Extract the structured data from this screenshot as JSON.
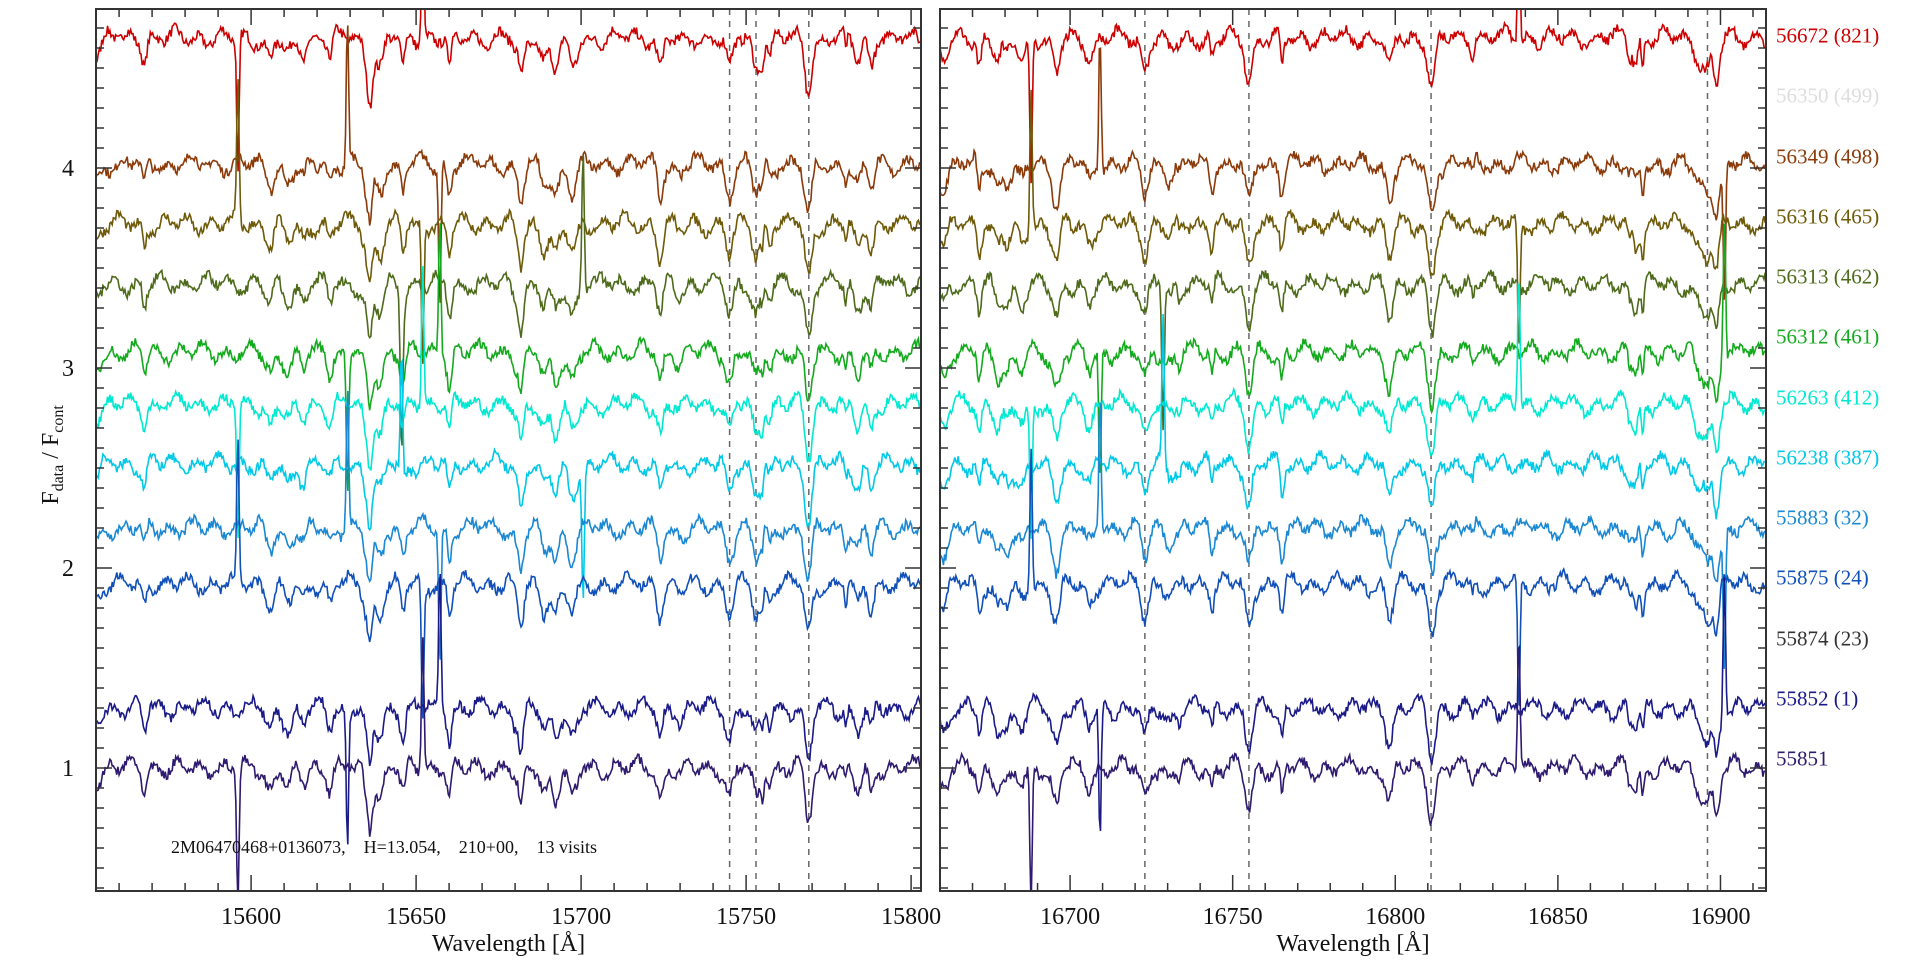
{
  "chart_data": {
    "type": "line",
    "ylabel_main": "F",
    "ylabel_num_sub": "data",
    "ylabel_sep": " / F",
    "ylabel_den_sub": "cont",
    "annotation": "2M06470468+0136073,    H=13.054,    210+00,    13 visits",
    "ylim": [
      0.385,
      4.795
    ],
    "yticks": [
      1,
      2,
      3,
      4
    ],
    "yminor_step": 0.1,
    "panels": [
      {
        "xlabel": "Wavelength [Å]",
        "xlim": [
          15553,
          15803
        ],
        "xticks": [
          15600,
          15650,
          15700,
          15750,
          15800
        ],
        "xminor_step": 10,
        "dashed_lines": [
          15745,
          15753,
          15769
        ]
      },
      {
        "xlabel": "Wavelength [Å]",
        "xlim": [
          16660,
          16914
        ],
        "xticks": [
          16700,
          16750,
          16800,
          16850,
          16900
        ],
        "xminor_step": 10,
        "dashed_lines": [
          16723,
          16755,
          16811,
          16896
        ]
      }
    ],
    "series": [
      {
        "name": "56672 (821)",
        "level": 4.65,
        "color": "#cc0000",
        "plotted": true
      },
      {
        "name": "56350 (499)",
        "level": null,
        "color": "#dddddd",
        "plotted": false
      },
      {
        "name": "56349 (498)",
        "level": 4.02,
        "color": "#8b3a0a",
        "plotted": true
      },
      {
        "name": "56316 (465)",
        "level": 3.72,
        "color": "#6e5a08",
        "plotted": true
      },
      {
        "name": "56313 (462)",
        "level": 3.42,
        "color": "#4d6b1a",
        "plotted": true
      },
      {
        "name": "56312 (461)",
        "level": 3.08,
        "color": "#14aa1e",
        "plotted": true
      },
      {
        "name": "56263 (412)",
        "level": 2.82,
        "color": "#00e8d0",
        "plotted": true
      },
      {
        "name": "56238 (387)",
        "level": 2.52,
        "color": "#00c8e6",
        "plotted": true
      },
      {
        "name": "55883 (32)",
        "level": 2.2,
        "color": "#1a88d2",
        "plotted": true
      },
      {
        "name": "55875 (24)",
        "level": 1.92,
        "color": "#1050b8",
        "plotted": true
      },
      {
        "name": "55874 (23)",
        "level": null,
        "color": "#333333",
        "plotted": false
      },
      {
        "name": "55852 (1)",
        "level": 1.3,
        "color": "#1a1a88",
        "plotted": true
      },
      {
        "name": "55851",
        "level": 1.0,
        "color": "#2e1a6e",
        "plotted": true
      }
    ]
  }
}
